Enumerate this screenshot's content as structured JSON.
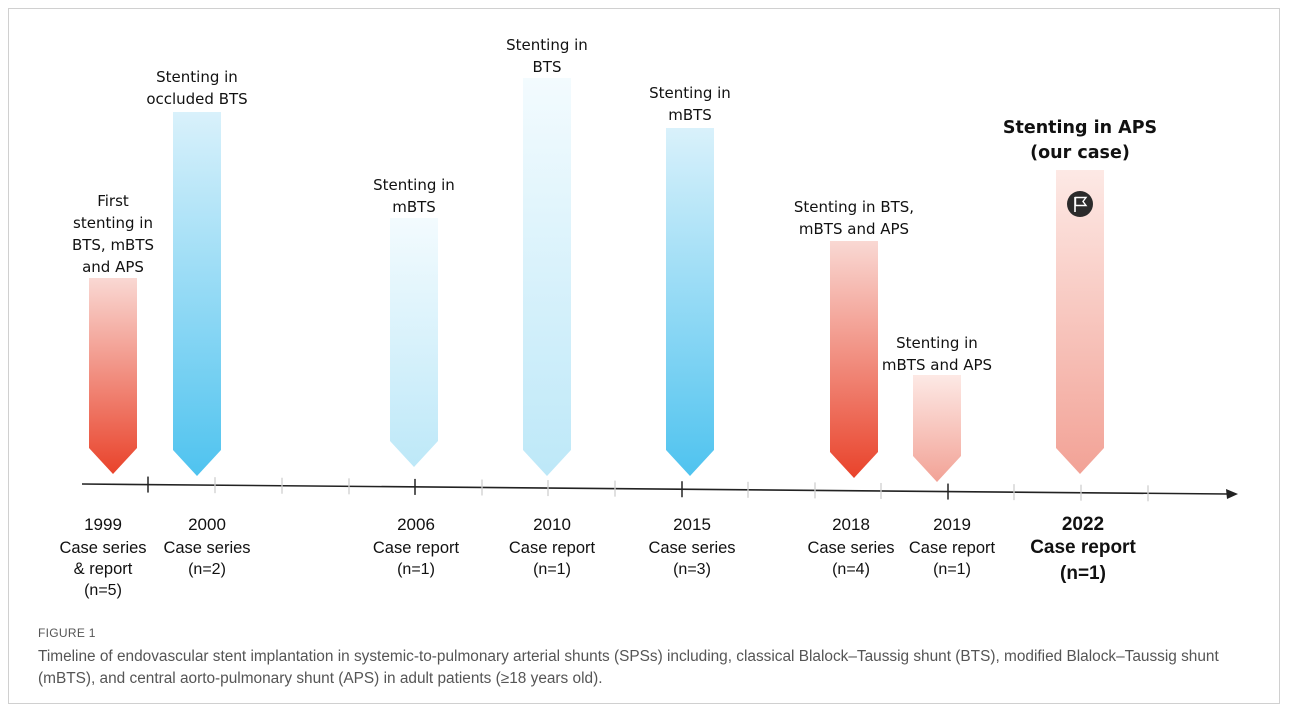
{
  "events": [
    {
      "event": "First stenting in BTS, mBTS and APS",
      "year": "1999",
      "study_type": "Case series & report",
      "n": "(n=5)",
      "kind": "red",
      "bold": false
    },
    {
      "event": "Stenting in occluded BTS",
      "year": "2000",
      "study_type": "Case series",
      "n": "(n=2)",
      "kind": "blue",
      "bold": false
    },
    {
      "event": "Stenting in mBTS",
      "year": "2006",
      "study_type": "Case report",
      "n": "(n=1)",
      "kind": "lightblue",
      "bold": false
    },
    {
      "event": "Stenting in BTS",
      "year": "2010",
      "study_type": "Case report",
      "n": "(n=1)",
      "kind": "lightblue",
      "bold": false
    },
    {
      "event": "Stenting in mBTS",
      "year": "2015",
      "study_type": "Case series",
      "n": "(n=3)",
      "kind": "blue",
      "bold": false
    },
    {
      "event": "Stenting in BTS, mBTS and APS",
      "year": "2018",
      "study_type": "Case series",
      "n": "(n=4)",
      "kind": "red",
      "bold": false
    },
    {
      "event": "Stenting in mBTS and APS",
      "year": "2019",
      "study_type": "Case report",
      "n": "(n=1)",
      "kind": "lightred",
      "bold": false
    },
    {
      "event": "Stenting in APS (our case)",
      "year": "2022",
      "study_type": "Case report",
      "n": "(n=1)",
      "kind": "lightred",
      "bold": true
    }
  ],
  "icons": {
    "ours_marker": "flag-icon"
  },
  "colors": {
    "red_top": "#f9d8d3",
    "red_bottom": "#e9432b",
    "blue_top": "#d9f1fb",
    "blue_bottom": "#4fc3ef",
    "lightblue_top": "#f3fbfe",
    "lightblue_bottom": "#bde8f8",
    "lightred_top": "#fde9e5",
    "lightred_bottom": "#f2a296",
    "axis": "#222222",
    "text": "#111111"
  },
  "caption": {
    "label": "FIGURE 1",
    "text": "Timeline of endovascular stent implantation in systemic-to-pulmonary arterial shunts (SPSs) including, classical Blalock–Taussig shunt (BTS), modified Blalock–Taussig shunt (mBTS), and central aorto-pulmonary shunt (APS) in adult patients (≥18 years old)."
  }
}
